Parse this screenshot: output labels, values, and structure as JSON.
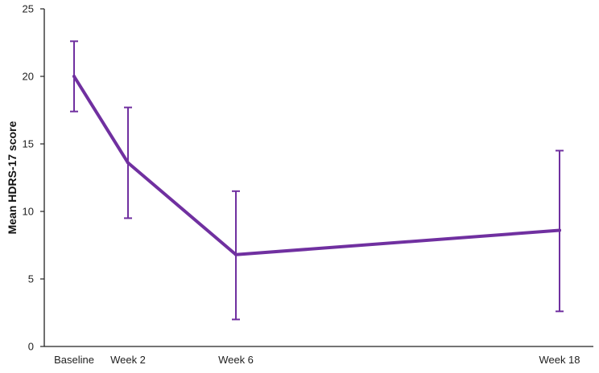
{
  "chart_data": {
    "type": "line",
    "title": "",
    "xlabel": "",
    "ylabel": "Mean HDRS-17 score",
    "ylim": [
      0,
      25
    ],
    "yticks": [
      0,
      5,
      10,
      15,
      20,
      25
    ],
    "grid": false,
    "x_scale": "weeks",
    "x": [
      0,
      2,
      6,
      18
    ],
    "categories": [
      "Baseline",
      "Week 2",
      "Week 6",
      "Week 18"
    ],
    "series": [
      {
        "color": "#7030a0",
        "values": [
          20.0,
          13.6,
          6.8,
          8.6
        ],
        "error_upper": [
          22.6,
          17.7,
          11.5,
          14.5
        ],
        "error_lower": [
          17.4,
          9.5,
          2.0,
          2.6
        ]
      }
    ]
  }
}
